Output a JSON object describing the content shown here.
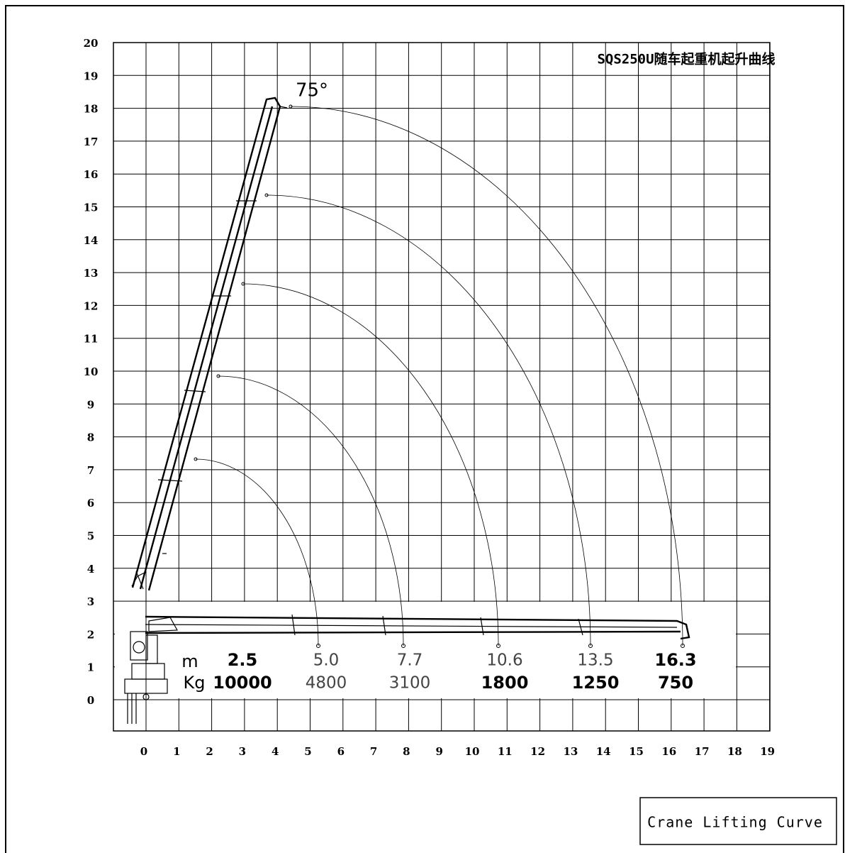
{
  "title": "SQS250U随车起重机起升曲线",
  "angle_label": "75°",
  "x_ticks": [
    0,
    1,
    2,
    3,
    4,
    5,
    6,
    7,
    8,
    9,
    10,
    11,
    12,
    13,
    14,
    15,
    16,
    17,
    18,
    19
  ],
  "y_ticks": [
    0,
    1,
    2,
    3,
    4,
    5,
    6,
    7,
    8,
    9,
    10,
    11,
    12,
    13,
    14,
    15,
    16,
    17,
    18,
    19,
    20
  ],
  "table": {
    "units": [
      "m",
      "Kg"
    ],
    "radius": [
      "2.5",
      "5.0",
      "7.7",
      "10.6",
      "13.5",
      "16.3"
    ],
    "load": [
      10000,
      4800,
      3100,
      1800,
      1250,
      750
    ]
  },
  "caption": "Crane Lifting Curve"
}
